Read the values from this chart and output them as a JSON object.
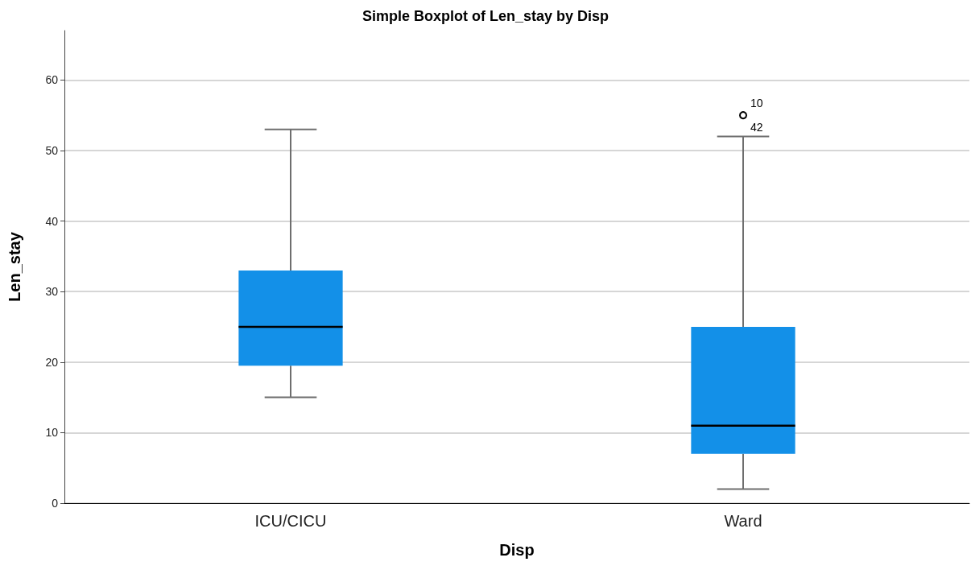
{
  "chart_data": {
    "type": "box",
    "title": "Simple Boxplot of Len_stay by Disp",
    "xlabel": "Disp",
    "ylabel": "Len_stay",
    "categories": [
      "ICU/CICU",
      "Ward"
    ],
    "series": [
      {
        "color": "#1390e8",
        "boxes": [
          {
            "low": 15,
            "q1": 19.5,
            "median": 25,
            "q3": 33,
            "high": 53
          },
          {
            "low": 2,
            "q1": 7,
            "median": 11,
            "q3": 25,
            "high": 52,
            "outliers": [
              55
            ]
          }
        ]
      }
    ],
    "annotations": [
      "10",
      "42"
    ],
    "ylim": [
      0,
      67
    ],
    "yticks": [
      0,
      10,
      20,
      30,
      40,
      50,
      60
    ],
    "grid": "y"
  }
}
